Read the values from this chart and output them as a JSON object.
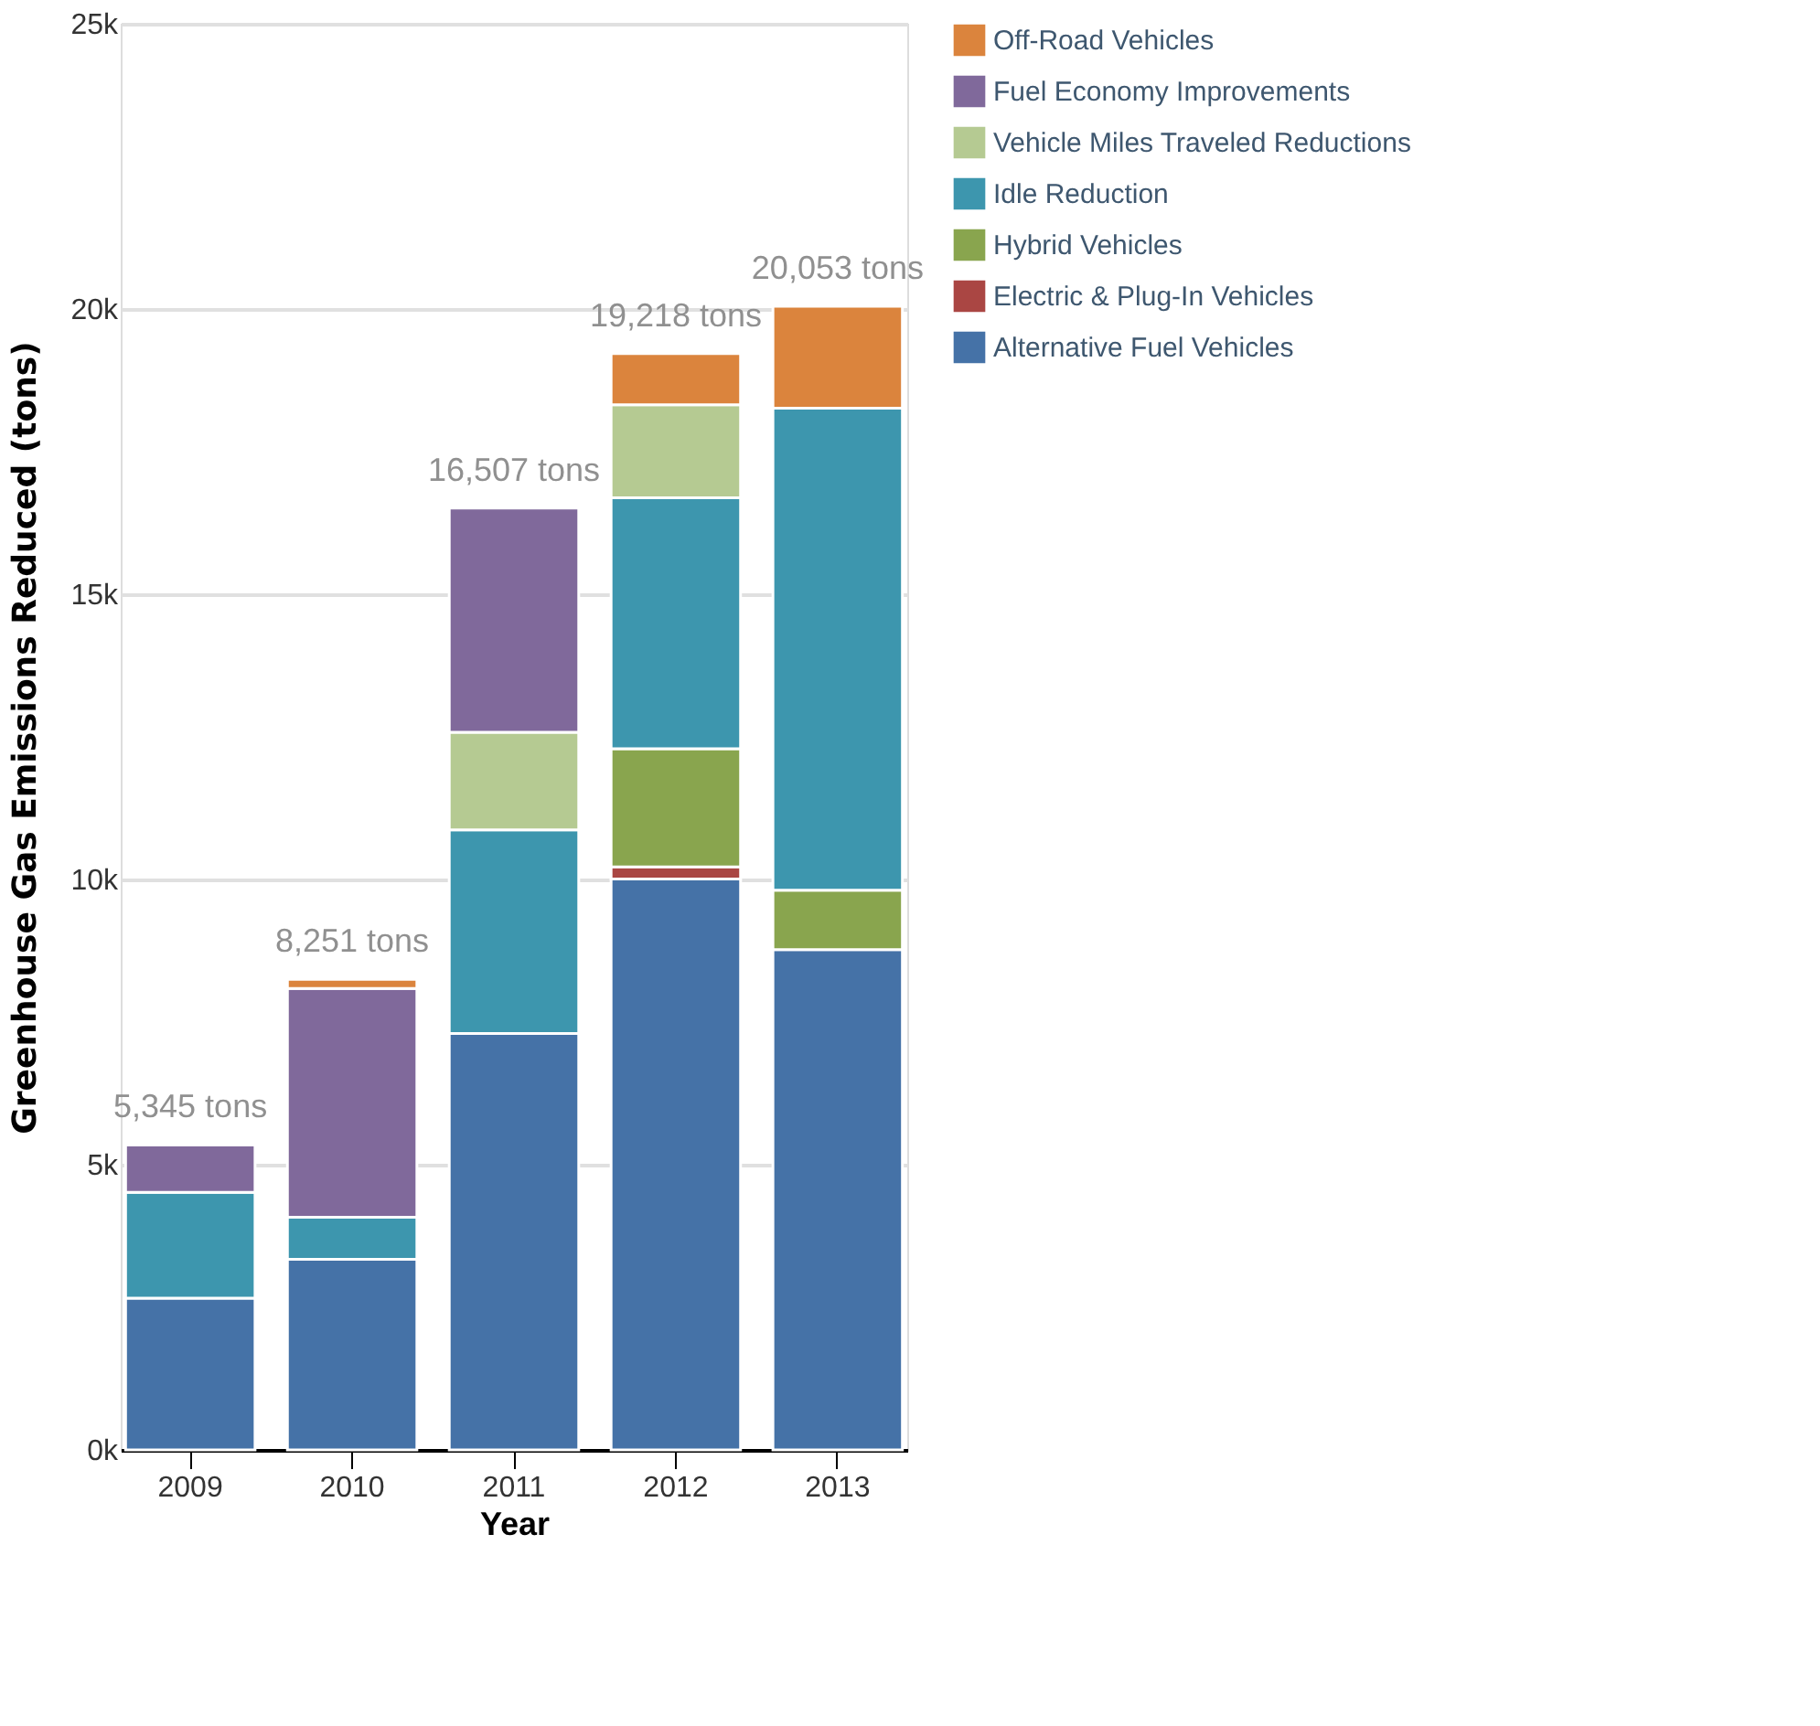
{
  "chart_data": {
    "type": "bar",
    "stacked": true,
    "xlabel": "Year",
    "ylabel": "Greenhouse Gas Emissions Reduced (tons)",
    "categories": [
      "2009",
      "2010",
      "2011",
      "2012",
      "2013"
    ],
    "series": [
      {
        "name": "Alternative Fuel Vehicles",
        "color": "#4572a7",
        "values": [
          2660,
          3340,
          7300,
          10010,
          8770
        ]
      },
      {
        "name": "Electric & Plug-In Vehicles",
        "color": "#aa4643",
        "values": [
          null,
          null,
          null,
          210,
          null
        ]
      },
      {
        "name": "Hybrid Vehicles",
        "color": "#89a54e",
        "values": [
          null,
          null,
          null,
          2070,
          1040
        ]
      },
      {
        "name": "Idle Reduction",
        "color": "#3d96ae",
        "values": [
          1855,
          740,
          3570,
          4400,
          8450
        ]
      },
      {
        "name": "Vehicle Miles Traveled Reductions",
        "color": "#b5ca92",
        "values": [
          null,
          null,
          1710,
          1630,
          null
        ]
      },
      {
        "name": "Fuel Economy Improvements",
        "color": "#80699b",
        "values": [
          830,
          4010,
          3930,
          null,
          null
        ]
      },
      {
        "name": "Off-Road Vehicles",
        "color": "#db843d",
        "values": [
          null,
          160,
          null,
          900,
          1790
        ]
      }
    ],
    "totals": [
      "5,345 tons",
      "8,251 tons",
      "16,507 tons",
      "19,218 tons",
      "20,053 tons"
    ],
    "ylim": [
      0,
      25000
    ],
    "yticks": [
      {
        "value": 0,
        "label": "0k"
      },
      {
        "value": 5000,
        "label": "5k"
      },
      {
        "value": 10000,
        "label": "10k"
      },
      {
        "value": 15000,
        "label": "15k"
      },
      {
        "value": 20000,
        "label": "20k"
      },
      {
        "value": 25000,
        "label": "25k"
      }
    ],
    "grid": "y",
    "legend": "right"
  }
}
